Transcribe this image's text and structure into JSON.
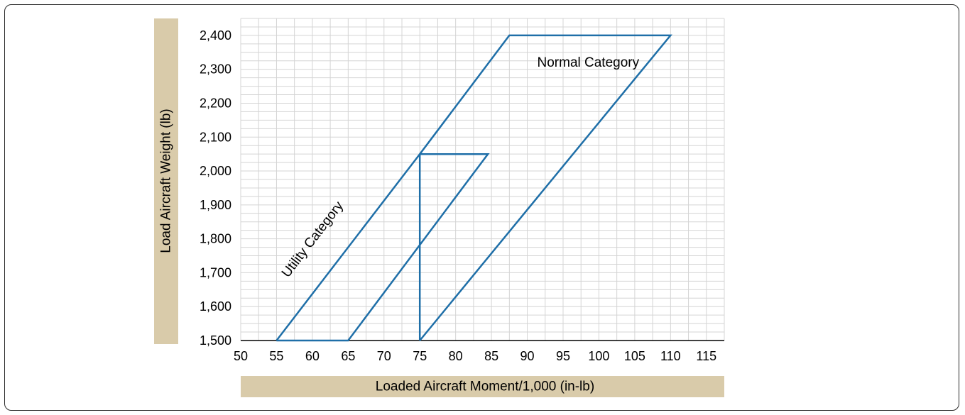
{
  "chart_data": {
    "type": "line",
    "title": "",
    "xlabel": "Loaded Aircraft Moment/1,000 (in-lb)",
    "ylabel": "Load Aircraft Weight (lb)",
    "xlim": [
      50,
      117.5
    ],
    "ylim": [
      1500,
      2450
    ],
    "x_ticks": [
      "50",
      "55",
      "60",
      "65",
      "70",
      "75",
      "80",
      "85",
      "90",
      "95",
      "100",
      "105",
      "110",
      "115"
    ],
    "y_ticks": [
      "1,500",
      "1,600",
      "1,700",
      "1,800",
      "1,900",
      "2,000",
      "2,100",
      "2,200",
      "2,300",
      "2,400"
    ],
    "grid": true,
    "series": [
      {
        "name": "Normal Category",
        "color": "#1f6fa8",
        "points": [
          [
            75,
            1500
          ],
          [
            75,
            2050
          ],
          [
            87.5,
            2400
          ],
          [
            110,
            2400
          ],
          [
            75,
            1500
          ]
        ]
      },
      {
        "name": "Utility Category",
        "color": "#1f6fa8",
        "points": [
          [
            55,
            1500
          ],
          [
            75,
            2050
          ],
          [
            84.5,
            2050
          ],
          [
            65,
            1500
          ],
          [
            55,
            1500
          ]
        ]
      }
    ],
    "annotations": [
      {
        "text": "Normal Category",
        "x": 98.5,
        "y": 2320
      },
      {
        "text": "Utility Category",
        "x": 59,
        "y": 1885
      }
    ],
    "colors": {
      "axis_band": "#d9cbaa",
      "grid": "#d4d4d4",
      "line": "#1f6fa8"
    }
  }
}
